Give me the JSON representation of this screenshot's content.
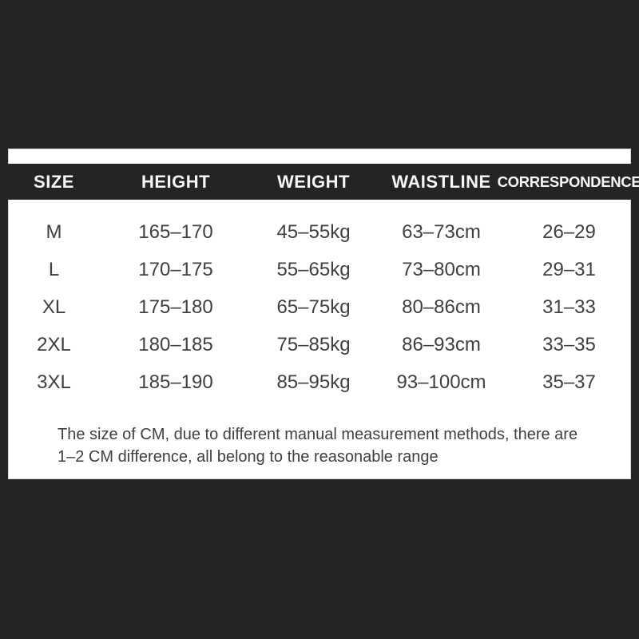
{
  "page": {
    "background_color": "#242424",
    "sheet_color": "#ffffff",
    "header_text_color": "#f7f7f7",
    "body_text_color": "#3f3f3f"
  },
  "table": {
    "headers": [
      "SIZE",
      "HEIGHT",
      "WEIGHT",
      "WAISTLINE",
      "CORRESPONDENCE"
    ],
    "rows": [
      [
        "M",
        "165–170",
        "45–55kg",
        "63–73cm",
        "26–29"
      ],
      [
        "L",
        "170–175",
        "55–65kg",
        "73–80cm",
        "29–31"
      ],
      [
        "XL",
        "175–180",
        "65–75kg",
        "80–86cm",
        "31–33"
      ],
      [
        "2XL",
        "180–185",
        "75–85kg",
        "86–93cm",
        "33–35"
      ],
      [
        "3XL",
        "185–190",
        "85–95kg",
        "93–100cm",
        "35–37"
      ]
    ]
  },
  "note": {
    "lines": [
      "The size of CM, due to different manual measurement methods, there are",
      "1–2 CM difference, all belong to the reasonable range"
    ]
  },
  "chart_data": {
    "type": "table",
    "title": "Apparel size chart",
    "columns": [
      "SIZE",
      "HEIGHT",
      "WEIGHT",
      "WAISTLINE",
      "CORRESPONDENCE"
    ],
    "rows": [
      [
        "M",
        "165–170",
        "45–55kg",
        "63–73cm",
        "26–29"
      ],
      [
        "L",
        "170–175",
        "55–65kg",
        "73–80cm",
        "29–31"
      ],
      [
        "XL",
        "175–180",
        "65–75kg",
        "80–86cm",
        "31–33"
      ],
      [
        "2XL",
        "180–185",
        "75–85kg",
        "86–93cm",
        "33–35"
      ],
      [
        "3XL",
        "185–190",
        "85–95kg",
        "93–100cm",
        "35–37"
      ]
    ],
    "footnote": "The size of CM, due to different manual measurement methods, there are 1–2 CM difference, all belong to the reasonable range"
  }
}
